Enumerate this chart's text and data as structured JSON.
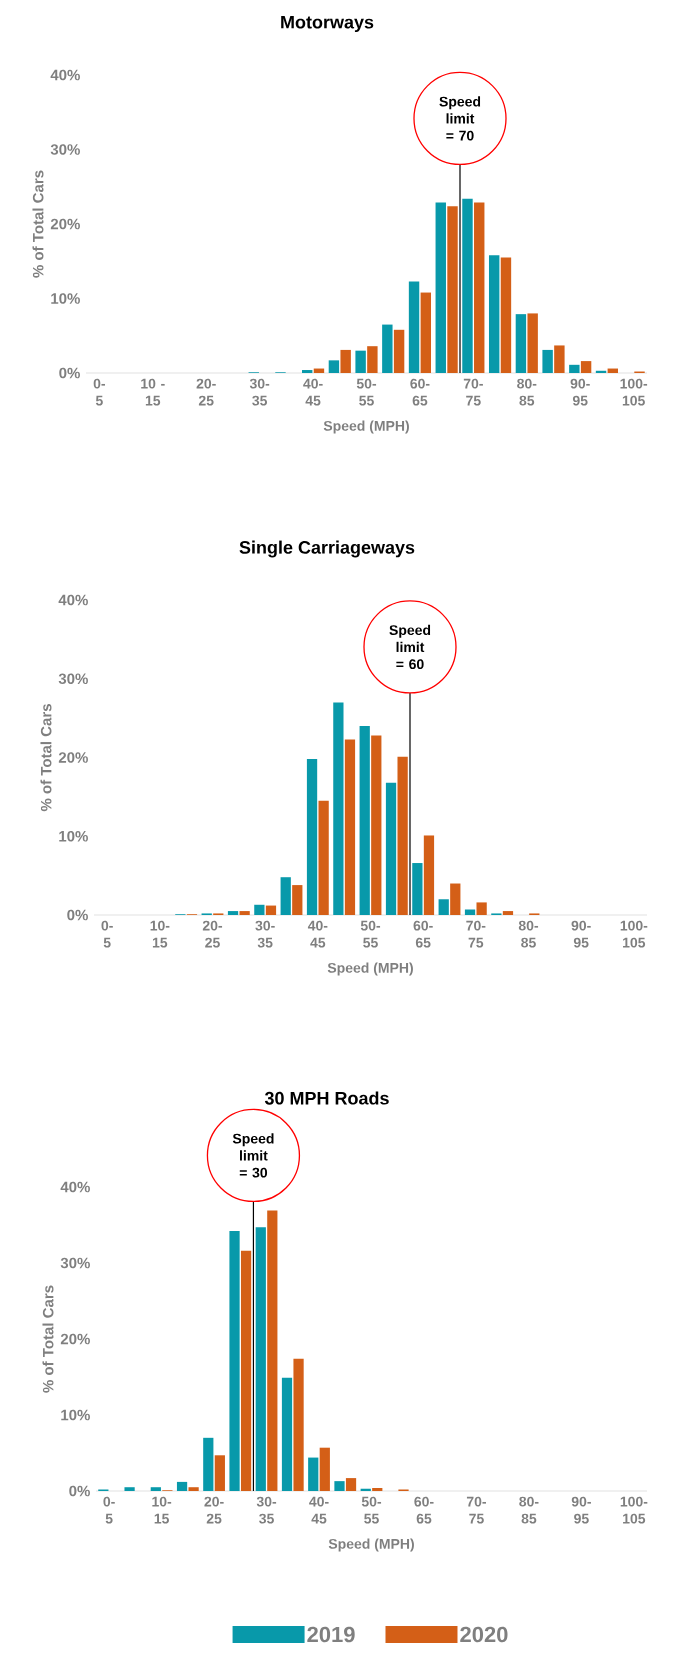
{
  "chart_data": [
    {
      "type": "bar",
      "title": "Motorways",
      "xlabel": "Speed (MPH)",
      "ylabel": "% of Total Cars",
      "categories": [
        "0-5",
        null,
        "10 - 15",
        null,
        "20-25",
        null,
        "30-35",
        null,
        "40-45",
        null,
        "50-55",
        null,
        "60-65",
        null,
        "70-75",
        null,
        "80-85",
        null,
        "90-95",
        null,
        "100-105"
      ],
      "series": [
        {
          "color": "#0899aa",
          "values": [
            0,
            0,
            0,
            0,
            0,
            0,
            0.1,
            0.1,
            0.4,
            1.7,
            3.0,
            6.5,
            12.3,
            22.9,
            23.4,
            15.8,
            7.9,
            3.1,
            1.1,
            0.3,
            0
          ]
        },
        {
          "color": "#d45f17",
          "values": [
            0,
            0,
            0,
            0,
            0,
            0,
            0,
            0,
            0.6,
            3.1,
            3.6,
            5.8,
            10.8,
            22.4,
            22.9,
            15.5,
            8.0,
            3.7,
            1.6,
            0.6,
            0.2
          ]
        }
      ],
      "ylim": [
        0,
        40
      ],
      "yticks": [
        {
          "value": 0,
          "label": "0%"
        },
        {
          "value": 10,
          "label": "10%"
        },
        {
          "value": 20,
          "label": "20%"
        },
        {
          "value": 30,
          "label": "30%"
        },
        {
          "value": 40,
          "label": "40%"
        }
      ],
      "annotations": [
        "Speed limit = 70"
      ]
    },
    {
      "type": "bar",
      "title": "Single Carriageways",
      "xlabel": "Speed (MPH)",
      "ylabel": "% of Total Cars",
      "categories": [
        "0-5",
        null,
        "10-15",
        null,
        "20-25",
        null,
        "30-35",
        null,
        "40-45",
        null,
        "50-55",
        null,
        "60-65",
        null,
        "70-75",
        null,
        "80-85",
        null,
        "90-95",
        null,
        "100-105"
      ],
      "series": [
        {
          "color": "#0899aa",
          "values": [
            0,
            0,
            0,
            0.1,
            0.2,
            0.5,
            1.3,
            4.8,
            19.8,
            27.0,
            24.0,
            16.8,
            6.6,
            2.0,
            0.7,
            0.2,
            0,
            0,
            0,
            0,
            0
          ]
        },
        {
          "color": "#d45f17",
          "values": [
            0,
            0,
            0,
            0.1,
            0.2,
            0.5,
            1.2,
            3.8,
            14.5,
            22.3,
            22.8,
            20.1,
            10.1,
            4.0,
            1.6,
            0.5,
            0.2,
            0,
            0,
            0,
            0
          ]
        }
      ],
      "ylim": [
        0,
        40
      ],
      "yticks": [
        {
          "value": 0,
          "label": "0%"
        },
        {
          "value": 10,
          "label": "10%"
        },
        {
          "value": 20,
          "label": "20%"
        },
        {
          "value": 30,
          "label": "30%"
        },
        {
          "value": 40,
          "label": "40%"
        }
      ],
      "annotations": [
        "Speed limit = 60"
      ]
    },
    {
      "type": "bar",
      "title": "30 MPH Roads",
      "xlabel": "Speed (MPH)",
      "ylabel": "% of Total Cars",
      "categories": [
        "0-5",
        null,
        "10-15",
        null,
        "20-25",
        null,
        "30-35",
        null,
        "40-45",
        null,
        "50-55",
        null,
        "60-65",
        null,
        "70-75",
        null,
        "80-85",
        null,
        "90-95",
        null,
        "100-105"
      ],
      "series": [
        {
          "name": "2019",
          "color": "#0899aa",
          "values": [
            0.2,
            0.5,
            0.5,
            1.2,
            7.0,
            34.2,
            34.7,
            14.9,
            4.4,
            1.3,
            0.3,
            0,
            0,
            0,
            0,
            0,
            0,
            0,
            0,
            0,
            0
          ]
        },
        {
          "name": "2020",
          "color": "#d45f17",
          "values": [
            0,
            0,
            0.1,
            0.5,
            4.7,
            31.6,
            36.9,
            17.4,
            5.7,
            1.7,
            0.4,
            0.2,
            0,
            0,
            0,
            0,
            0,
            0,
            0,
            0,
            0
          ]
        }
      ],
      "ylim": [
        0,
        40
      ],
      "yticks": [
        {
          "value": 0,
          "label": "0%"
        },
        {
          "value": 10,
          "label": "10%"
        },
        {
          "value": 20,
          "label": "20%"
        },
        {
          "value": 30,
          "label": "30%"
        },
        {
          "value": 40,
          "label": "40%"
        }
      ],
      "annotations": [
        "Speed limit = 30"
      ],
      "legend": "bottom"
    }
  ]
}
